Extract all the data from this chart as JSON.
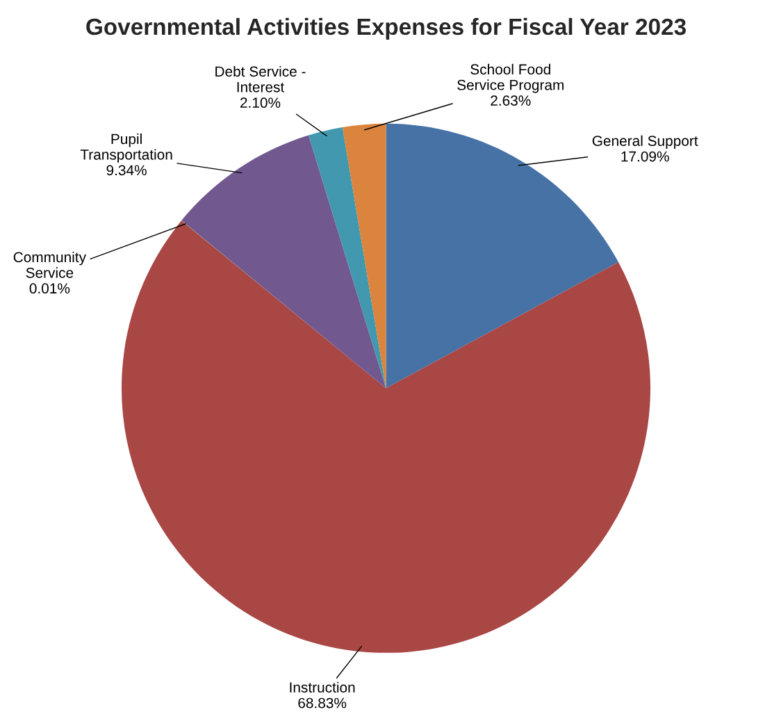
{
  "chart_data": {
    "type": "pie",
    "title": "Governmental Activities Expenses for Fiscal Year 2023",
    "categories": [
      "General Support",
      "Instruction",
      "Community\nService",
      "Pupil\nTransportation",
      "Debt Service -\nInterest",
      "School Food\nService Program"
    ],
    "values": [
      17.09,
      68.83,
      0.01,
      9.34,
      2.1,
      2.63
    ],
    "value_labels": [
      "17.09%",
      "68.83%",
      "0.01%",
      "9.34%",
      "2.10%",
      "2.63%"
    ],
    "colors": [
      "#4672a6",
      "#a94745",
      "#89a54e",
      "#71588f",
      "#4198af",
      "#db843d"
    ]
  }
}
